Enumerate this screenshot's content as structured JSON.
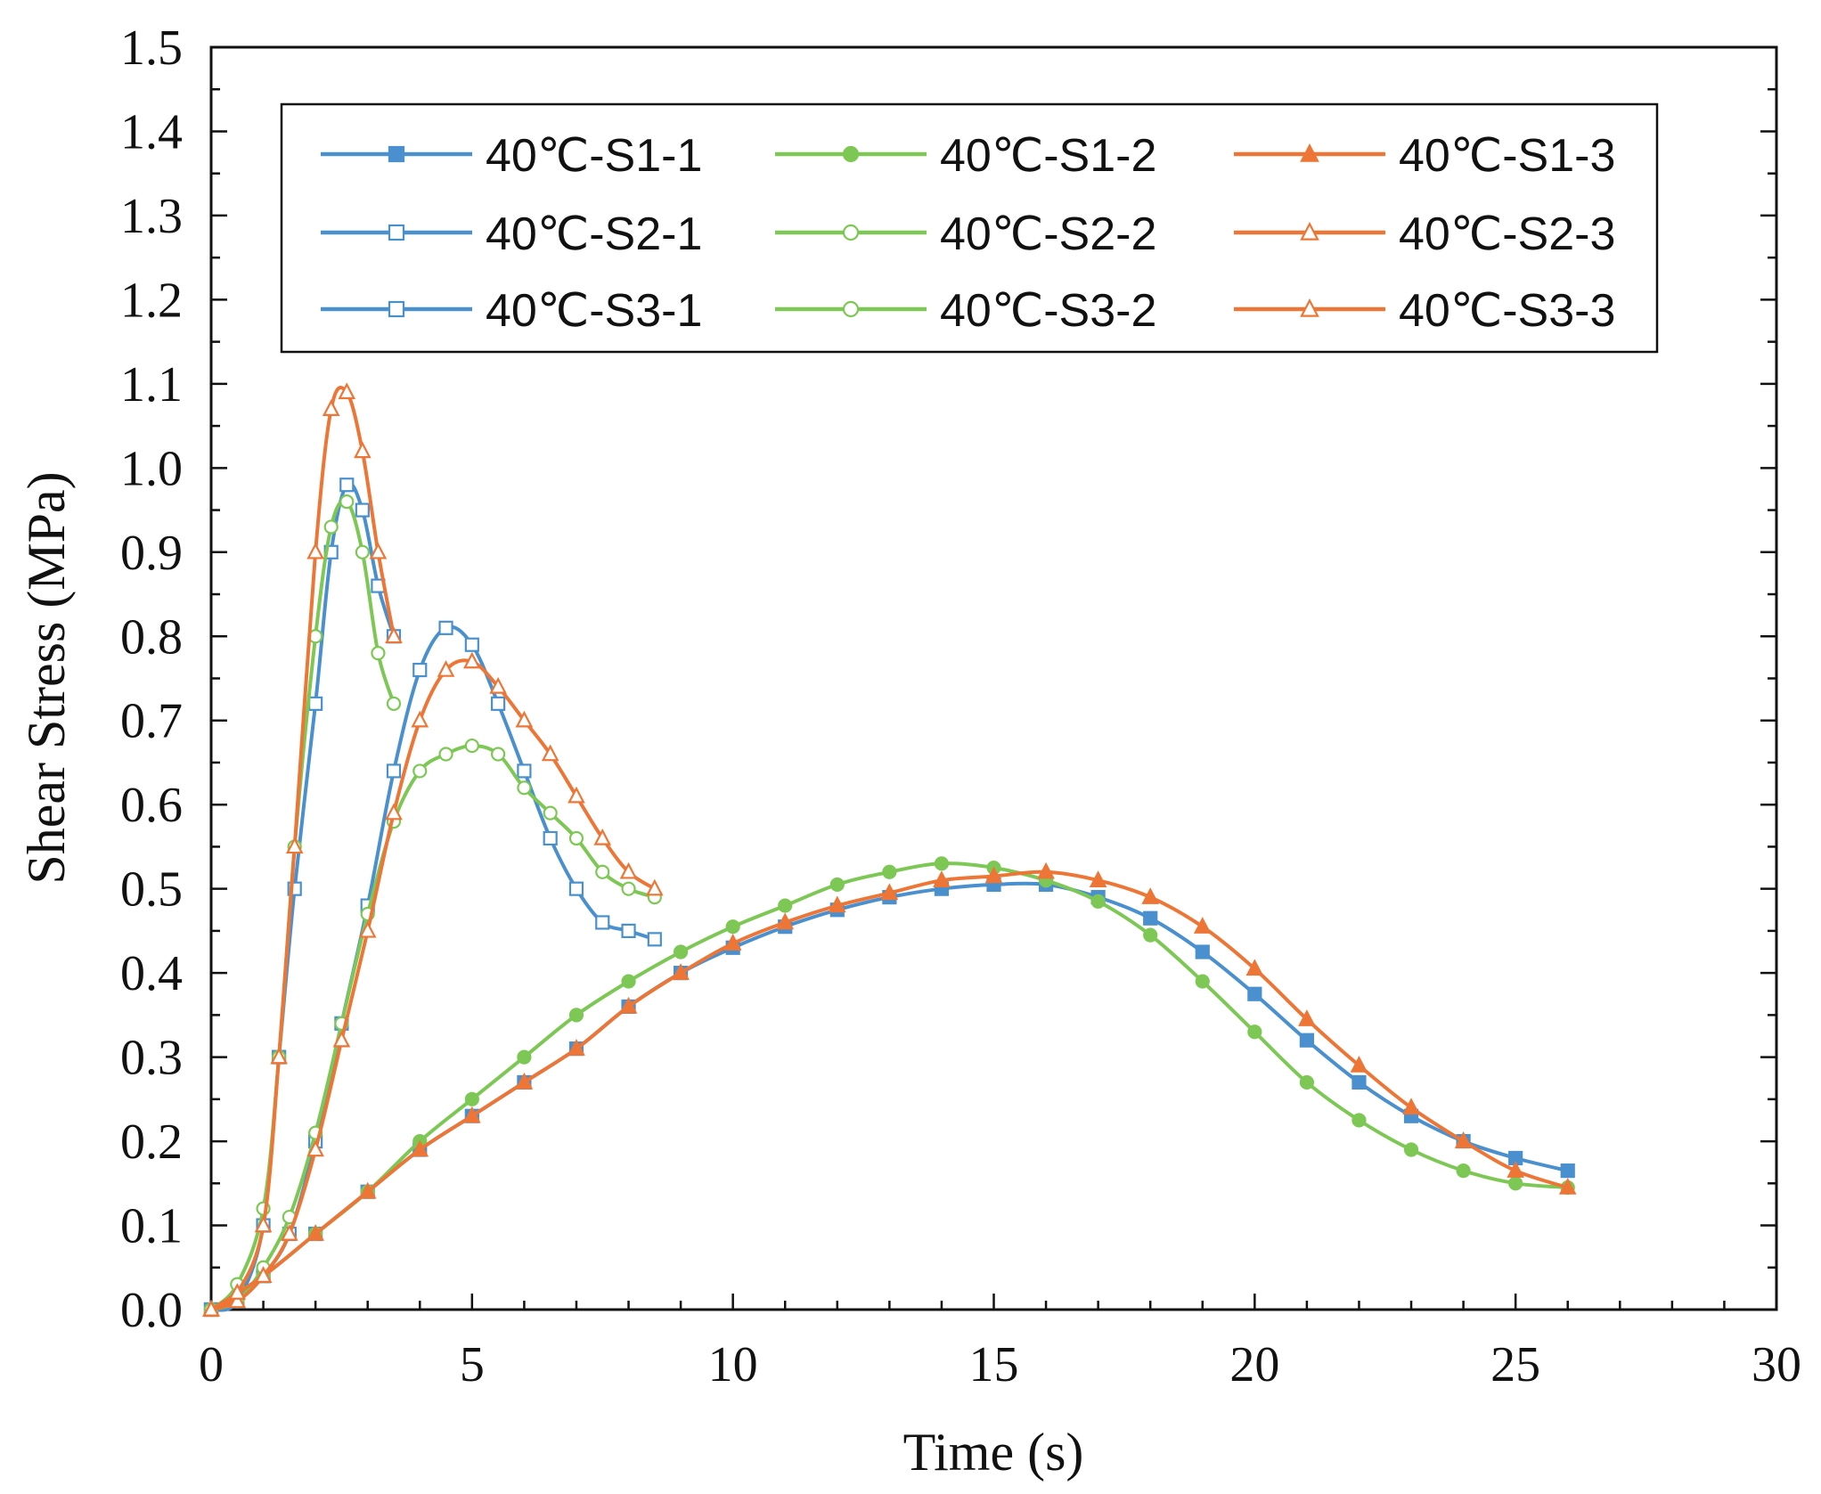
{
  "chart_data": {
    "type": "line",
    "title": "",
    "xlabel": "Time (s)",
    "ylabel": "Shear Stress (MPa)",
    "xlim": [
      0,
      30
    ],
    "ylim": [
      0,
      1.5
    ],
    "xticks": [
      "0",
      "5",
      "10",
      "15",
      "20",
      "25",
      "30"
    ],
    "xtick_values": [
      0,
      5,
      10,
      15,
      20,
      25,
      30
    ],
    "yticks": [
      "0.0",
      "0.1",
      "0.2",
      "0.3",
      "0.4",
      "0.5",
      "0.6",
      "0.7",
      "0.8",
      "0.9",
      "1.0",
      "1.1",
      "1.2",
      "1.3",
      "1.4",
      "1.5"
    ],
    "ytick_values": [
      0,
      0.1,
      0.2,
      0.3,
      0.4,
      0.5,
      0.6,
      0.7,
      0.8,
      0.9,
      1.0,
      1.1,
      1.2,
      1.3,
      1.4,
      1.5
    ],
    "grid": false,
    "legend_position": "top",
    "series": [
      {
        "name": "40℃-S1-1",
        "color": "#4a90cf",
        "marker": "square",
        "filled": true,
        "x": [
          0,
          1,
          2,
          3,
          4,
          5,
          6,
          7,
          8,
          9,
          10,
          11,
          12,
          13,
          14,
          15,
          16,
          17,
          18,
          19,
          20,
          21,
          22,
          23,
          24,
          25,
          26
        ],
        "y": [
          0.0,
          0.04,
          0.09,
          0.14,
          0.19,
          0.23,
          0.27,
          0.31,
          0.36,
          0.4,
          0.43,
          0.455,
          0.475,
          0.49,
          0.5,
          0.505,
          0.505,
          0.49,
          0.465,
          0.425,
          0.375,
          0.32,
          0.27,
          0.23,
          0.2,
          0.18,
          0.165
        ]
      },
      {
        "name": "40℃-S2-1",
        "color": "#4a90cf",
        "marker": "square",
        "filled": false,
        "x": [
          0,
          0.5,
          1,
          1.5,
          2,
          2.5,
          3,
          3.5,
          4,
          4.5,
          5,
          5.5,
          6,
          6.5,
          7,
          7.5,
          8,
          8.5
        ],
        "y": [
          0.0,
          0.01,
          0.04,
          0.09,
          0.2,
          0.34,
          0.48,
          0.64,
          0.76,
          0.81,
          0.79,
          0.72,
          0.64,
          0.56,
          0.5,
          0.46,
          0.45,
          0.44
        ]
      },
      {
        "name": "40℃-S3-1",
        "color": "#4a90cf",
        "marker": "square",
        "filled": false,
        "x": [
          0,
          0.5,
          1,
          1.3,
          1.6,
          2,
          2.3,
          2.6,
          2.9,
          3.2,
          3.5
        ],
        "y": [
          0.0,
          0.01,
          0.1,
          0.3,
          0.5,
          0.72,
          0.9,
          0.98,
          0.95,
          0.86,
          0.8
        ]
      },
      {
        "name": "40℃-S1-2",
        "color": "#7dc855",
        "marker": "circle",
        "filled": true,
        "x": [
          0,
          1,
          2,
          3,
          4,
          5,
          6,
          7,
          8,
          9,
          10,
          11,
          12,
          13,
          14,
          15,
          16,
          17,
          18,
          19,
          20,
          21,
          22,
          23,
          24,
          25,
          26
        ],
        "y": [
          0.0,
          0.04,
          0.09,
          0.14,
          0.2,
          0.25,
          0.3,
          0.35,
          0.39,
          0.425,
          0.455,
          0.48,
          0.505,
          0.52,
          0.53,
          0.525,
          0.51,
          0.485,
          0.445,
          0.39,
          0.33,
          0.27,
          0.225,
          0.19,
          0.165,
          0.15,
          0.145
        ]
      },
      {
        "name": "40℃-S2-2",
        "color": "#7dc855",
        "marker": "circle",
        "filled": false,
        "x": [
          0,
          0.5,
          1,
          1.5,
          2,
          2.5,
          3,
          3.5,
          4,
          4.5,
          5,
          5.5,
          6,
          6.5,
          7,
          7.5,
          8,
          8.5
        ],
        "y": [
          0.0,
          0.01,
          0.05,
          0.11,
          0.21,
          0.34,
          0.47,
          0.58,
          0.64,
          0.66,
          0.67,
          0.66,
          0.62,
          0.59,
          0.56,
          0.52,
          0.5,
          0.49
        ]
      },
      {
        "name": "40℃-S3-2",
        "color": "#7dc855",
        "marker": "circle",
        "filled": false,
        "x": [
          0,
          0.5,
          1,
          1.3,
          1.6,
          2,
          2.3,
          2.6,
          2.9,
          3.2,
          3.5
        ],
        "y": [
          0.0,
          0.03,
          0.12,
          0.3,
          0.55,
          0.8,
          0.93,
          0.96,
          0.9,
          0.78,
          0.72
        ]
      },
      {
        "name": "40℃-S1-3",
        "color": "#ed7636",
        "marker": "triangle",
        "filled": true,
        "x": [
          0,
          1,
          2,
          3,
          4,
          5,
          6,
          7,
          8,
          9,
          10,
          11,
          12,
          13,
          14,
          15,
          16,
          17,
          18,
          19,
          20,
          21,
          22,
          23,
          24,
          25,
          26
        ],
        "y": [
          0.0,
          0.04,
          0.09,
          0.14,
          0.19,
          0.23,
          0.27,
          0.31,
          0.36,
          0.4,
          0.435,
          0.46,
          0.48,
          0.495,
          0.51,
          0.515,
          0.52,
          0.51,
          0.49,
          0.455,
          0.405,
          0.345,
          0.29,
          0.24,
          0.2,
          0.165,
          0.145
        ]
      },
      {
        "name": "40℃-S2-3",
        "color": "#ed7636",
        "marker": "triangle",
        "filled": false,
        "x": [
          0,
          0.5,
          1,
          1.5,
          2,
          2.5,
          3,
          3.5,
          4,
          4.5,
          5,
          5.5,
          6,
          6.5,
          7,
          7.5,
          8,
          8.5
        ],
        "y": [
          0.0,
          0.01,
          0.04,
          0.09,
          0.19,
          0.32,
          0.45,
          0.59,
          0.7,
          0.76,
          0.77,
          0.74,
          0.7,
          0.66,
          0.61,
          0.56,
          0.52,
          0.5
        ]
      },
      {
        "name": "40℃-S3-3",
        "color": "#ed7636",
        "marker": "triangle",
        "filled": false,
        "x": [
          0,
          0.5,
          1,
          1.3,
          1.6,
          2,
          2.3,
          2.6,
          2.9,
          3.2,
          3.5
        ],
        "y": [
          0.0,
          0.02,
          0.1,
          0.3,
          0.55,
          0.9,
          1.07,
          1.09,
          1.02,
          0.9,
          0.8
        ]
      }
    ]
  }
}
